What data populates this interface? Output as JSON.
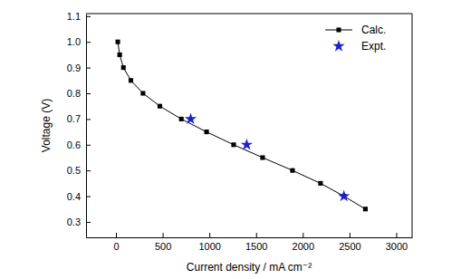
{
  "chart_data": {
    "type": "line",
    "x_label": "Current density / mA cm⁻²",
    "y_label": "Voltage (V)",
    "xlim": [
      -320,
      3170
    ],
    "ylim": [
      0.24,
      1.11
    ],
    "xticks": [
      0,
      500,
      1000,
      1500,
      2000,
      2500,
      3000
    ],
    "yticks": [
      0.3,
      0.4,
      0.5,
      0.6,
      0.7,
      0.8,
      0.9,
      {
        "value": 1,
        "label": "1.0"
      },
      1.1
    ],
    "legend": "top-right",
    "series": [
      {
        "name": "Calc.",
        "color": "#000000",
        "type": "line",
        "marker": "square",
        "line_style": "solid",
        "x": [
          20,
          40,
          80,
          160,
          290,
          470,
          700,
          970,
          1260,
          1570,
          1890,
          2190,
          2440,
          2670
        ],
        "values": [
          1.0,
          0.95,
          0.9,
          0.85,
          0.8,
          0.75,
          0.7,
          0.65,
          0.6,
          0.55,
          0.5,
          0.45,
          0.4,
          0.35
        ]
      },
      {
        "name": "Expt.",
        "color": "#1f1fd0",
        "type": "scatter",
        "marker": "star",
        "line_style": "none",
        "x": [
          800,
          1400,
          2440
        ],
        "values": [
          0.7,
          0.6,
          0.4
        ]
      }
    ]
  }
}
